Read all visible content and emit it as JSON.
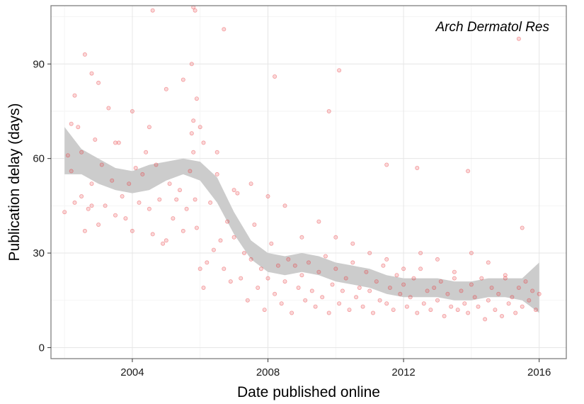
{
  "chart_data": {
    "type": "scatter",
    "panel_label": "Arch Dermatol Res",
    "xlabel": "Date published online",
    "ylabel": "Publication delay (days)",
    "xlim": [
      2001.6,
      2016.8
    ],
    "ylim": [
      -3.5,
      108.5
    ],
    "x_ticks": [
      2004,
      2008,
      2012,
      2016
    ],
    "x_tick_labels": [
      "2004",
      "2008",
      "2012",
      "2016"
    ],
    "y_ticks": [
      0,
      30,
      60,
      90
    ],
    "y_tick_labels": [
      "0",
      "30",
      "60",
      "90"
    ],
    "grid": true,
    "point_color": "#e8393e",
    "band_color": "#cccccc",
    "smooth": {
      "x": [
        2002.0,
        2002.5,
        2003.0,
        2003.5,
        2004.0,
        2004.5,
        2005.0,
        2005.5,
        2006.0,
        2006.5,
        2007.0,
        2007.5,
        2008.0,
        2008.5,
        2009.0,
        2009.5,
        2010.0,
        2010.5,
        2011.0,
        2011.5,
        2012.0,
        2012.5,
        2013.0,
        2013.5,
        2014.0,
        2014.5,
        2015.0,
        2015.5,
        2016.0
      ],
      "upper": [
        70,
        63,
        60,
        57,
        56,
        58,
        59,
        60,
        59,
        54,
        43,
        34,
        30,
        29,
        30,
        29,
        27,
        26,
        25,
        23,
        22,
        22,
        22,
        21,
        21,
        22,
        22,
        22,
        27
      ],
      "lower": [
        55,
        55,
        52,
        50,
        49,
        50,
        53,
        55,
        53,
        46,
        36,
        28,
        24,
        23,
        24,
        23,
        21,
        20,
        19,
        17,
        16,
        16,
        16,
        15,
        15,
        16,
        16,
        15,
        11
      ]
    },
    "points": {
      "x": [
        2002.0,
        2002.1,
        2002.2,
        2002.3,
        2002.3,
        2002.4,
        2002.5,
        2002.5,
        2002.6,
        2002.7,
        2002.8,
        2002.8,
        2002.9,
        2003.0,
        2003.1,
        2003.2,
        2003.3,
        2003.4,
        2003.5,
        2003.6,
        2003.7,
        2003.8,
        2003.9,
        2004.0,
        2004.1,
        2004.2,
        2004.3,
        2004.4,
        2004.5,
        2004.6,
        2004.7,
        2004.8,
        2004.9,
        2005.0,
        2005.1,
        2005.2,
        2005.3,
        2005.4,
        2005.5,
        2005.6,
        2005.7,
        2005.75,
        2005.8,
        2005.85,
        2005.9,
        2006.0,
        2006.1,
        2006.2,
        2006.3,
        2006.4,
        2006.5,
        2006.6,
        2006.7,
        2006.8,
        2006.9,
        2007.0,
        2007.1,
        2007.2,
        2007.3,
        2007.4,
        2007.5,
        2007.6,
        2007.7,
        2007.8,
        2007.9,
        2008.0,
        2008.1,
        2008.2,
        2008.3,
        2008.4,
        2008.5,
        2008.6,
        2008.7,
        2008.8,
        2008.9,
        2009.0,
        2009.1,
        2009.2,
        2009.3,
        2009.4,
        2009.5,
        2009.6,
        2009.7,
        2009.8,
        2009.9,
        2010.0,
        2010.1,
        2010.2,
        2010.3,
        2010.4,
        2010.5,
        2010.6,
        2010.7,
        2010.8,
        2010.9,
        2011.0,
        2011.1,
        2011.2,
        2011.3,
        2011.4,
        2011.5,
        2011.6,
        2011.7,
        2011.8,
        2011.9,
        2012.0,
        2012.1,
        2012.2,
        2012.3,
        2012.4,
        2012.5,
        2012.6,
        2012.7,
        2012.8,
        2012.9,
        2013.0,
        2013.1,
        2013.2,
        2013.3,
        2013.4,
        2013.5,
        2013.6,
        2013.7,
        2013.8,
        2013.9,
        2014.0,
        2014.1,
        2014.2,
        2014.3,
        2014.4,
        2014.5,
        2014.6,
        2014.7,
        2014.8,
        2014.9,
        2015.0,
        2015.1,
        2015.2,
        2015.3,
        2015.4,
        2015.5,
        2015.6,
        2015.7,
        2015.8,
        2015.9,
        2016.0,
        2002.2,
        2002.6,
        2003.0,
        2003.5,
        2004.0,
        2004.5,
        2005.0,
        2005.5,
        2006.0,
        2006.5,
        2007.0,
        2007.5,
        2008.0,
        2008.5,
        2009.0,
        2009.5,
        2010.0,
        2010.5,
        2011.0,
        2011.5,
        2012.0,
        2012.5,
        2013.0,
        2013.5,
        2014.0,
        2014.5,
        2015.0,
        2015.5,
        2005.75,
        2005.8,
        2005.85,
        2005.9,
        2005.8,
        2006.7,
        2004.6,
        2002.8,
        2006.1,
        2008.2,
        2009.8,
        2010.1,
        2011.5,
        2012.4,
        2013.9,
        2015.4
      ],
      "y": [
        43,
        61,
        56,
        46,
        80,
        70,
        48,
        62,
        37,
        44,
        52,
        45,
        66,
        39,
        58,
        45,
        76,
        53,
        42,
        65,
        48,
        41,
        52,
        37,
        57,
        46,
        55,
        62,
        44,
        36,
        58,
        47,
        33,
        34,
        52,
        41,
        47,
        50,
        37,
        44,
        56,
        68,
        62,
        47,
        38,
        25,
        19,
        27,
        46,
        31,
        55,
        34,
        25,
        40,
        21,
        35,
        49,
        22,
        30,
        15,
        28,
        39,
        19,
        25,
        12,
        22,
        33,
        17,
        26,
        14,
        21,
        28,
        11,
        26,
        19,
        23,
        15,
        27,
        18,
        13,
        24,
        16,
        29,
        11,
        20,
        25,
        14,
        18,
        22,
        12,
        27,
        16,
        19,
        13,
        24,
        18,
        11,
        21,
        15,
        26,
        14,
        19,
        12,
        23,
        17,
        20,
        13,
        16,
        22,
        11,
        25,
        14,
        18,
        12,
        19,
        15,
        21,
        10,
        17,
        13,
        24,
        12,
        18,
        14,
        11,
        20,
        16,
        13,
        22,
        9,
        15,
        19,
        12,
        17,
        10,
        23,
        14,
        16,
        11,
        19,
        13,
        21,
        15,
        18,
        12,
        17,
        71,
        93,
        84,
        65,
        75,
        70,
        82,
        85,
        70,
        62,
        50,
        52,
        48,
        45,
        35,
        40,
        35,
        33,
        30,
        28,
        25,
        30,
        28,
        22,
        30,
        27,
        22,
        38,
        90,
        108,
        107,
        79,
        72,
        101,
        107,
        87,
        65,
        86,
        75,
        88,
        58,
        57,
        56,
        98
      ],
      "count_note": ""
    }
  }
}
